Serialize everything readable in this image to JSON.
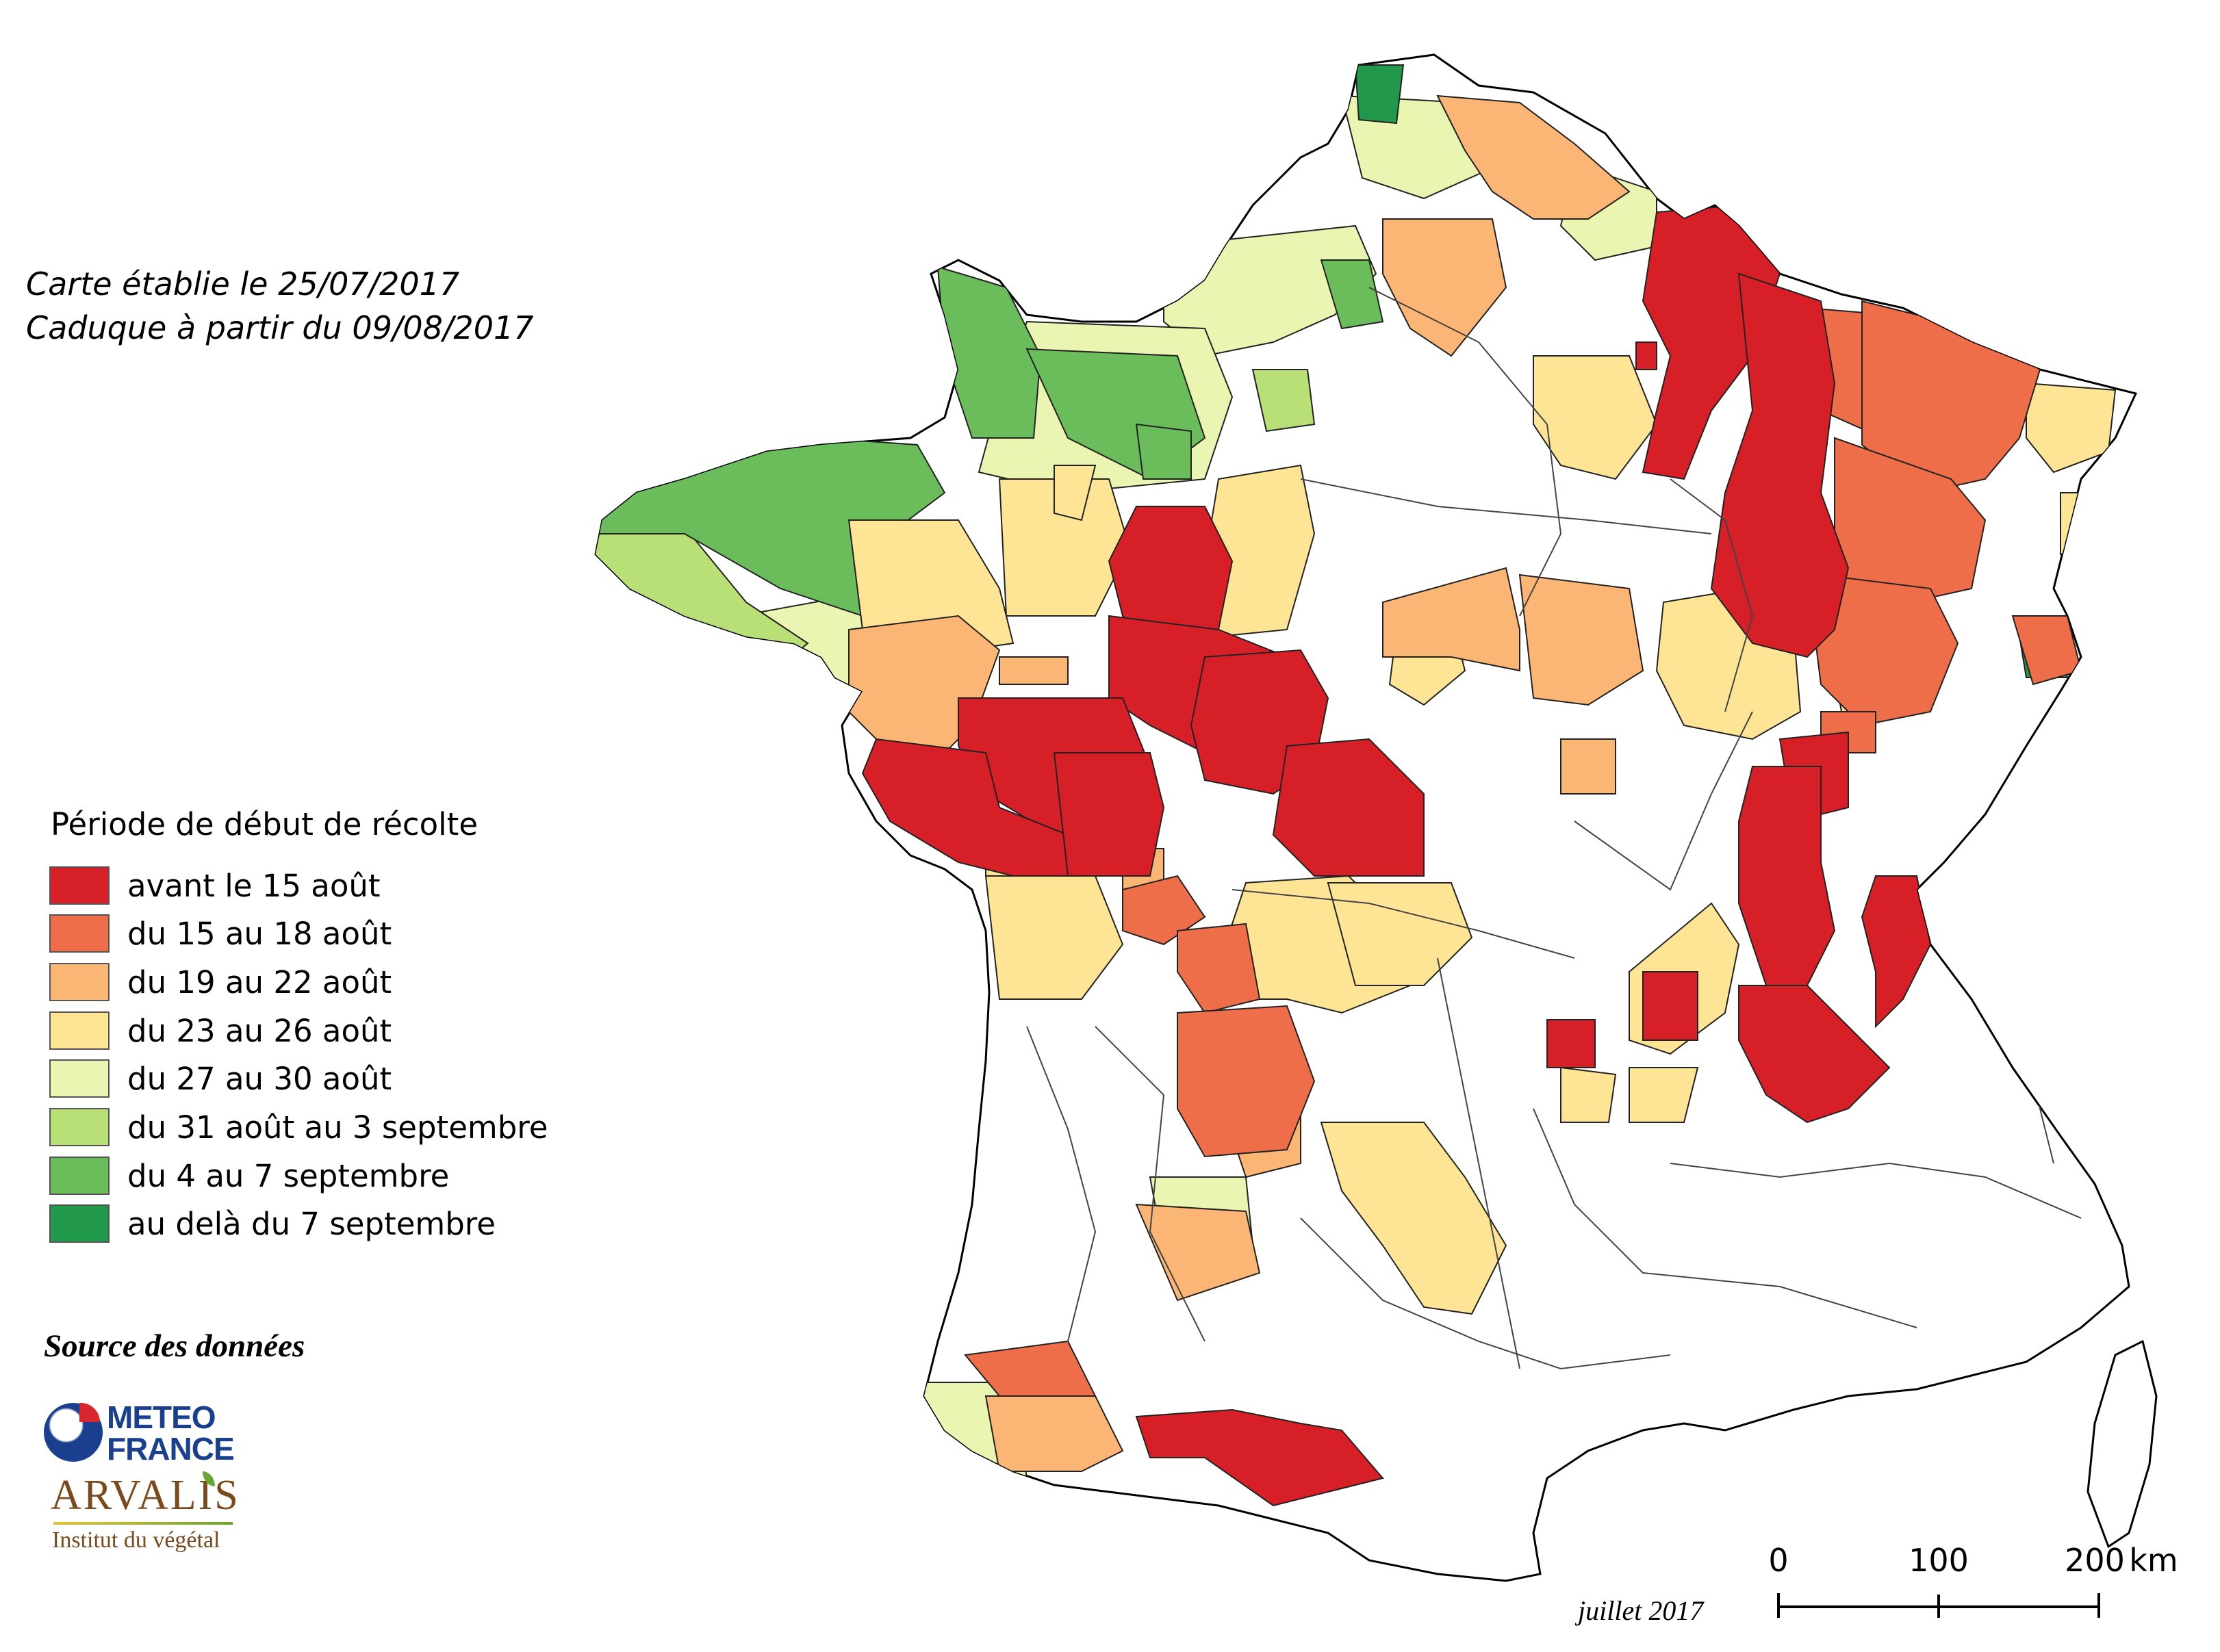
{
  "notes": {
    "line1": "Carte établie le 25/07/2017",
    "line2": "Caduque à partir du 09/08/2017"
  },
  "legend": {
    "title": "Période de début de récolte",
    "items": [
      {
        "label": "avant le 15 août",
        "color": "#d61f26"
      },
      {
        "label": "du 15 au 18 août",
        "color": "#ef6e4a"
      },
      {
        "label": "du 19 au 22 août",
        "color": "#fbb574"
      },
      {
        "label": "du 23 au 26 août",
        "color": "#fde595"
      },
      {
        "label": "du 27 au 30 août",
        "color": "#eaf5b1"
      },
      {
        "label": "du 31 août au 3 septembre",
        "color": "#b9df77"
      },
      {
        "label": "du 4 au 7 septembre",
        "color": "#6bbd5c"
      },
      {
        "label": "au delà du 7 septembre",
        "color": "#22994a"
      }
    ]
  },
  "source": {
    "title": "Source des données",
    "logo1": {
      "line1": "METEO",
      "line2": "FRANCE",
      "icon": "meteo-france-logo"
    },
    "logo2": {
      "name": "ARVALIS",
      "tagline": "Institut du végétal",
      "icon": "arvalis-logo"
    }
  },
  "map_date": "juillet 2017",
  "scale_bar": {
    "labels": [
      "0",
      "100",
      "200"
    ],
    "unit": "km"
  }
}
